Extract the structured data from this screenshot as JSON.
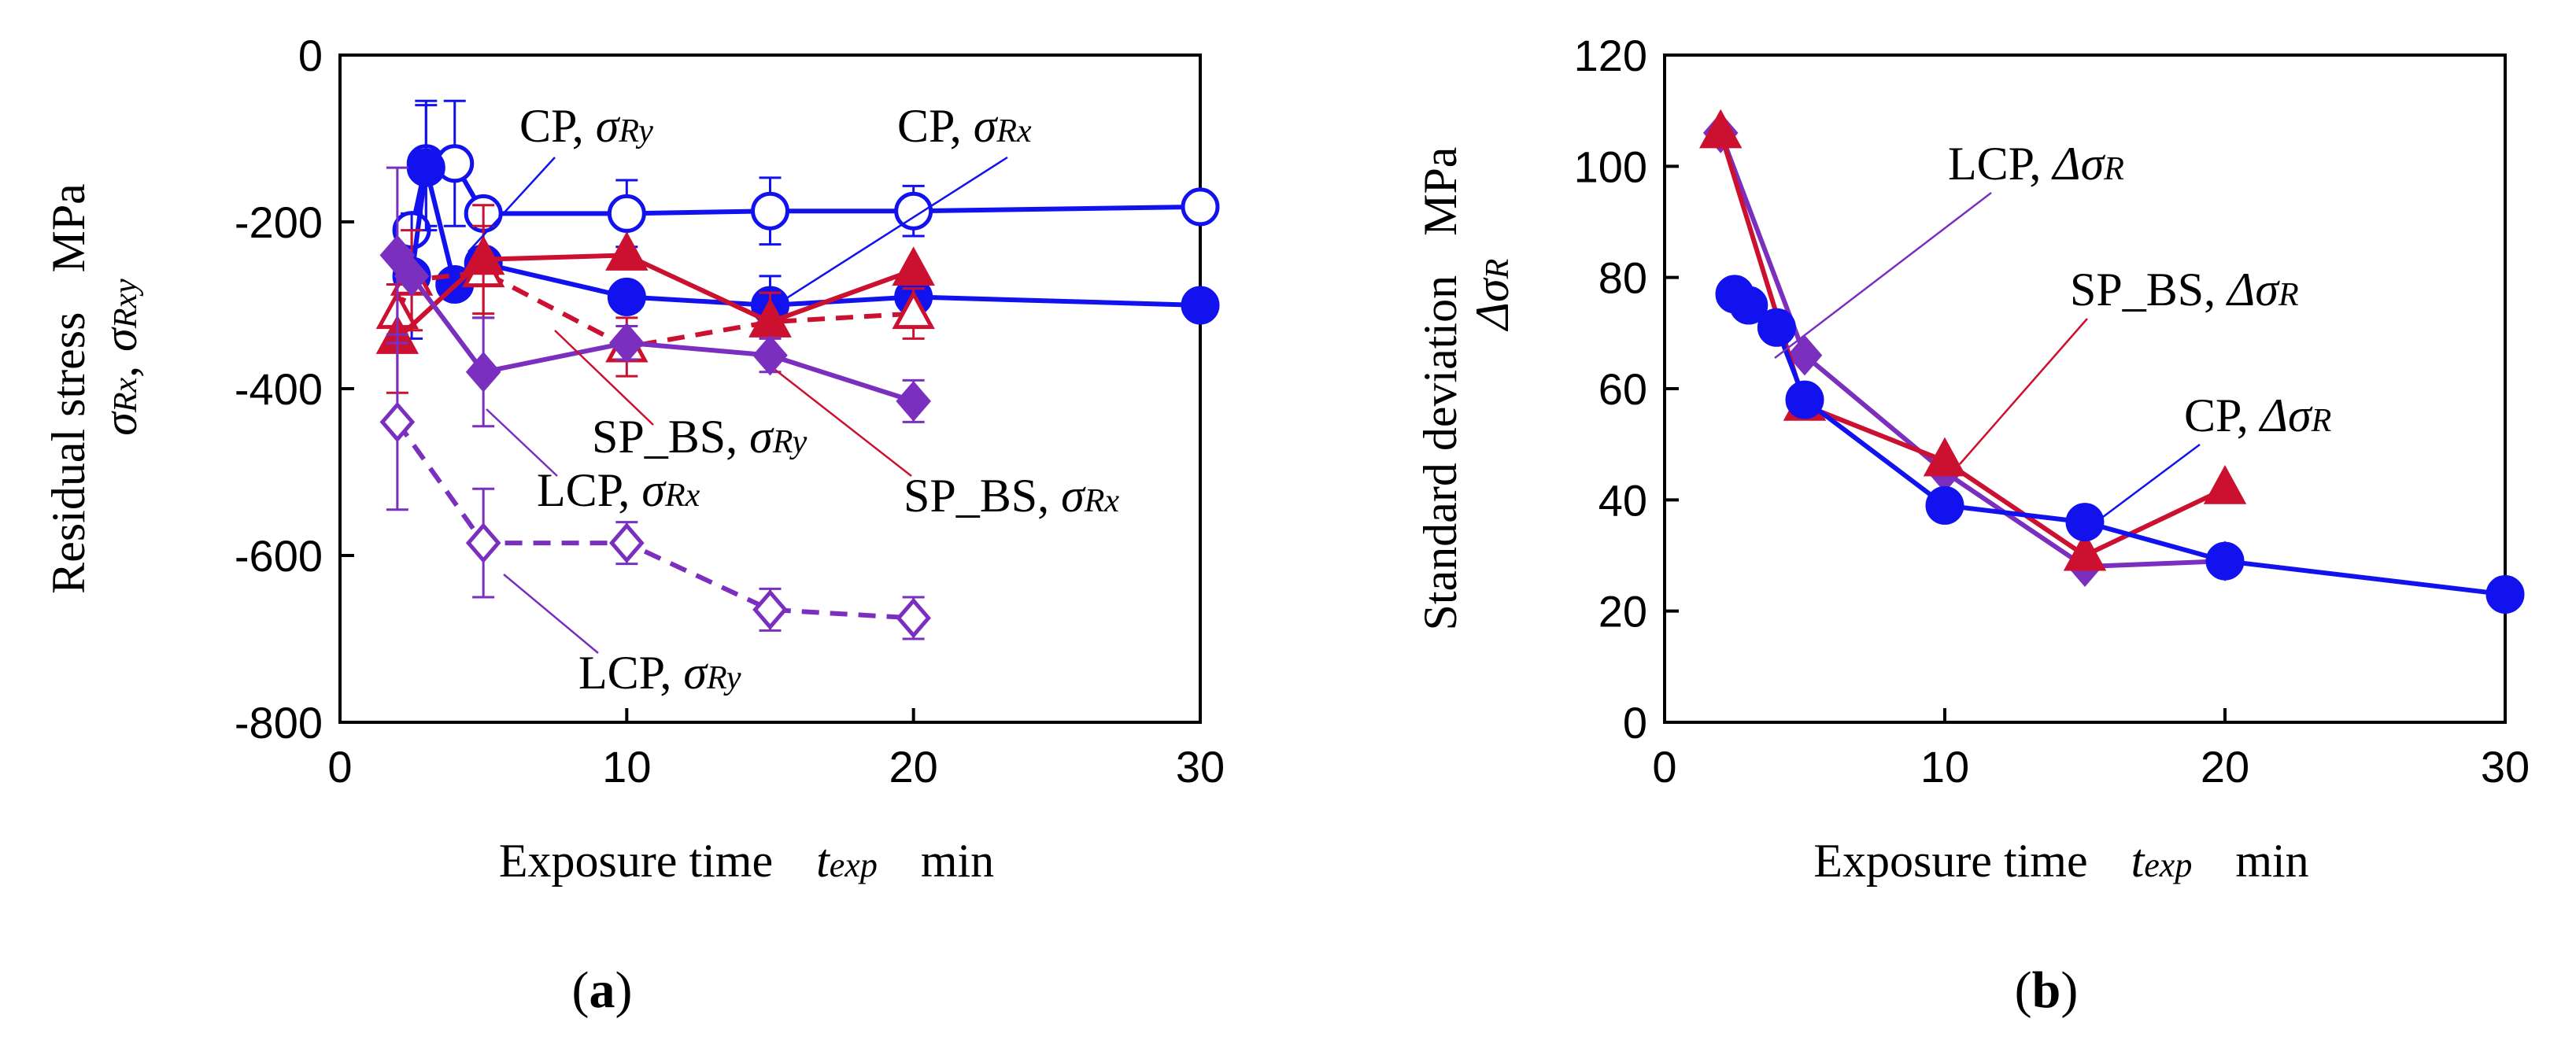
{
  "colors": {
    "blue": "#1212ee",
    "red": "#cc1030",
    "purple": "#7a2fbf",
    "axis": "#000000"
  },
  "chart_data": [
    {
      "type": "line",
      "panel": "a",
      "caption": {
        "open": "(",
        "bold": "a",
        "close": ")"
      },
      "xlim": [
        0,
        30
      ],
      "ylim": [
        -800,
        0
      ],
      "xticks": [
        0,
        10,
        20,
        30
      ],
      "yticks": [
        -800,
        -600,
        -400,
        -200,
        0
      ],
      "xlabel": {
        "main": "Exposure time",
        "var": "t",
        "sub": "exp",
        "unit": "min"
      },
      "ylabel": {
        "line1": "Residual stress",
        "unit": "MPa",
        "v1": "σ",
        "s1": "Rx",
        "sep": ",",
        "v2": "σ",
        "s2": "Rxy"
      },
      "series": [
        {
          "name": "CP, σRy",
          "color": "blue",
          "marker": "circle",
          "filled": false,
          "dashed": false,
          "x": [
            2.5,
            3,
            4,
            5,
            10,
            15,
            20,
            30
          ],
          "y": [
            -210,
            -130,
            -130,
            -190,
            -190,
            -187,
            -187,
            -182
          ],
          "err": [
            null,
            75,
            75,
            null,
            40,
            40,
            30,
            null
          ]
        },
        {
          "name": "CP, σRx",
          "color": "blue",
          "marker": "circle",
          "filled": true,
          "dashed": false,
          "x": [
            2.5,
            3,
            4,
            5,
            10,
            15,
            20,
            30
          ],
          "y": [
            -265,
            -135,
            -275,
            -250,
            -290,
            -300,
            -290,
            -300
          ],
          "err": [
            75,
            75,
            null,
            null,
            null,
            35,
            35,
            null
          ]
        },
        {
          "name": "SP_BS, σRy",
          "color": "red",
          "marker": "triangle",
          "filled": false,
          "dashed": true,
          "x": [
            2,
            2.5,
            5,
            10,
            15,
            20
          ],
          "y": [
            -310,
            -270,
            -260,
            -350,
            -320,
            -310
          ],
          "err": [
            null,
            60,
            55,
            35,
            35,
            30
          ]
        },
        {
          "name": "SP_BS, σRx",
          "color": "red",
          "marker": "triangle",
          "filled": true,
          "dashed": false,
          "x": [
            2,
            5,
            10,
            15,
            20
          ],
          "y": [
            -340,
            -245,
            -240,
            -320,
            -258
          ],
          "err": [
            65,
            65,
            null,
            null,
            null
          ]
        },
        {
          "name": "LCP, σRx",
          "color": "purple",
          "marker": "diamond",
          "filled": true,
          "dashed": false,
          "x": [
            2,
            2.5,
            5,
            10,
            15,
            20
          ],
          "y": [
            -240,
            -265,
            -380,
            -345,
            -360,
            -415
          ],
          "err": [
            105,
            null,
            65,
            20,
            20,
            25
          ]
        },
        {
          "name": "LCP, σRy",
          "color": "purple",
          "marker": "diamond",
          "filled": false,
          "dashed": true,
          "x": [
            2,
            5,
            10,
            15,
            20
          ],
          "y": [
            -440,
            -585,
            -585,
            -665,
            -675
          ],
          "err": [
            105,
            65,
            25,
            25,
            25
          ]
        }
      ],
      "annotations": [
        {
          "id": "cp-ry",
          "parts": [
            "CP, ",
            "σ",
            "Ry"
          ],
          "color": "blue"
        },
        {
          "id": "cp-rx",
          "parts": [
            "CP, ",
            "σ",
            "Rx"
          ],
          "color": "blue"
        },
        {
          "id": "spbs-ry",
          "parts": [
            "SP_BS, ",
            "σ",
            "Ry"
          ],
          "color": "red"
        },
        {
          "id": "lcp-rx",
          "parts": [
            "LCP, ",
            "σ",
            "Rx"
          ],
          "color": "purple"
        },
        {
          "id": "spbs-rx",
          "parts": [
            "SP_BS, ",
            "σ",
            "Rx"
          ],
          "color": "red"
        },
        {
          "id": "lcp-ry",
          "parts": [
            "LCP, ",
            "σ",
            "Ry"
          ],
          "color": "purple"
        }
      ]
    },
    {
      "type": "line",
      "panel": "b",
      "caption": {
        "open": "(",
        "bold": "b",
        "close": ")"
      },
      "xlim": [
        0,
        30
      ],
      "ylim": [
        0,
        120
      ],
      "xticks": [
        0,
        10,
        20,
        30
      ],
      "yticks": [
        0,
        20,
        40,
        60,
        80,
        100,
        120
      ],
      "xlabel": {
        "main": "Exposure time",
        "var": "t",
        "sub": "exp",
        "unit": "min"
      },
      "ylabel": {
        "line1": "Standard deviation",
        "unit": "MPa",
        "v1": "Δσ",
        "s1": "R"
      },
      "series": [
        {
          "name": "LCP, ΔσR",
          "color": "purple",
          "marker": "diamond",
          "filled": true,
          "dashed": false,
          "x": [
            2,
            5,
            10,
            15,
            20
          ],
          "y": [
            106,
            66,
            45,
            28,
            29
          ]
        },
        {
          "name": "SP_BS, ΔσR",
          "color": "red",
          "marker": "triangle",
          "filled": true,
          "dashed": false,
          "x": [
            2,
            5,
            10,
            15,
            20
          ],
          "y": [
            106,
            57,
            47,
            30,
            42
          ]
        },
        {
          "name": "CP, ΔσR",
          "color": "blue",
          "marker": "circle",
          "filled": true,
          "dashed": false,
          "x": [
            2.5,
            3,
            4,
            5,
            10,
            15,
            20,
            30
          ],
          "y": [
            77,
            75,
            71,
            58,
            39,
            36,
            29,
            23
          ]
        }
      ],
      "annotations": [
        {
          "id": "lcp",
          "parts": [
            "LCP, ",
            "Δσ",
            "R"
          ],
          "color": "purple"
        },
        {
          "id": "spbs",
          "parts": [
            "SP_BS, ",
            "Δσ",
            "R"
          ],
          "color": "red"
        },
        {
          "id": "cp",
          "parts": [
            "CP, ",
            "Δσ",
            "R"
          ],
          "color": "blue"
        }
      ]
    }
  ]
}
